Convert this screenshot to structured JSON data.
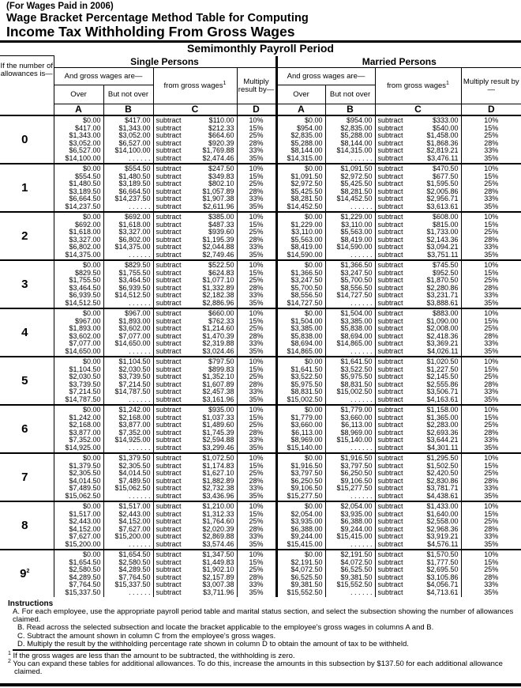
{
  "header": {
    "year_note": "(For Wages Paid in 2006)",
    "title_line1": "Wage Bracket Percentage Method Table for Computing",
    "title_line2": "Income Tax Withholding From Gross Wages",
    "period": "Semimonthly Payroll Period"
  },
  "columns": {
    "allowances": "If the number of allowances is—",
    "single": "Single Persons",
    "married": "Married Persons",
    "wages_are": "And gross wages are—",
    "over": "Over",
    "but_not_over": "But not over",
    "from_gross": "from gross wages",
    "from_gross_note": "1",
    "multiply": "Multiply result by—",
    "letters": [
      "A",
      "B",
      "C",
      "D"
    ],
    "subtract_word": "subtract",
    "open_ended": ". . . . . ."
  },
  "rates": [
    "10%",
    "15%",
    "25%",
    "28%",
    "33%",
    "35%"
  ],
  "groups": [
    {
      "allowances": "0",
      "note": "",
      "single": {
        "a": [
          "$0.00",
          "$417.00",
          "$1,343.00",
          "$3,052.00",
          "$6,527.00",
          "$14,100.00"
        ],
        "b": [
          "$417.00",
          "$1,343.00",
          "$3,052.00",
          "$6,527.00",
          "$14,100.00"
        ],
        "c": [
          "$110.00",
          "$212.33",
          "$664.60",
          "$920.39",
          "$1,769.88",
          "$2,474.46"
        ]
      },
      "married": {
        "a": [
          "$0.00",
          "$954.00",
          "$2,835.00",
          "$5,288.00",
          "$8,144.00",
          "$14,315.00"
        ],
        "b": [
          "$954.00",
          "$2,835.00",
          "$5,288.00",
          "$8,144.00",
          "$14,315.00"
        ],
        "c": [
          "$333.00",
          "$540.00",
          "$1,458.00",
          "$1,868.36",
          "$2,819.21",
          "$3,476.11"
        ]
      }
    },
    {
      "allowances": "1",
      "note": "",
      "single": {
        "a": [
          "$0.00",
          "$554.50",
          "$1,480.50",
          "$3,189.50",
          "$6,664.50",
          "$14,237.50"
        ],
        "b": [
          "$554.50",
          "$1,480.50",
          "$3,189.50",
          "$6,664.50",
          "$14,237.50"
        ],
        "c": [
          "$247.50",
          "$349.83",
          "$802.10",
          "$1,057.89",
          "$1,907.38",
          "$2,611.96"
        ]
      },
      "married": {
        "a": [
          "$0.00",
          "$1,091.50",
          "$2,972.50",
          "$5,425.50",
          "$8,281.50",
          "$14,452.50"
        ],
        "b": [
          "$1,091.50",
          "$2,972.50",
          "$5,425.50",
          "$8,281.50",
          "$14,452.50"
        ],
        "c": [
          "$470.50",
          "$677.50",
          "$1,595.50",
          "$2,005.86",
          "$2,956.71",
          "$3,613.61"
        ]
      }
    },
    {
      "allowances": "2",
      "note": "",
      "single": {
        "a": [
          "$0.00",
          "$692.00",
          "$1,618.00",
          "$3,327.00",
          "$6,802.00",
          "$14,375.00"
        ],
        "b": [
          "$692.00",
          "$1,618.00",
          "$3,327.00",
          "$6,802.00",
          "$14,375.00"
        ],
        "c": [
          "$385.00",
          "$487.33",
          "$939.60",
          "$1,195.39",
          "$2,044.88",
          "$2,749.46"
        ]
      },
      "married": {
        "a": [
          "$0.00",
          "$1,229.00",
          "$3,110.00",
          "$5,563.00",
          "$8,419.00",
          "$14,590.00"
        ],
        "b": [
          "$1,229.00",
          "$3,110.00",
          "$5,563.00",
          "$8,419.00",
          "$14,590.00"
        ],
        "c": [
          "$608.00",
          "$815.00",
          "$1,733.00",
          "$2,143.36",
          "$3,094.21",
          "$3,751.11"
        ]
      }
    },
    {
      "allowances": "3",
      "note": "",
      "single": {
        "a": [
          "$0.00",
          "$829.50",
          "$1,755.50",
          "$3,464.50",
          "$6,939.50",
          "$14,512.50"
        ],
        "b": [
          "$829.50",
          "$1,755.50",
          "$3,464.50",
          "$6,939.50",
          "$14,512.50"
        ],
        "c": [
          "$522.50",
          "$624.83",
          "$1,077.10",
          "$1,332.89",
          "$2,182.38",
          "$2,886.96"
        ]
      },
      "married": {
        "a": [
          "$0.00",
          "$1,366.50",
          "$3,247.50",
          "$5,700.50",
          "$8,556.50",
          "$14,727.50"
        ],
        "b": [
          "$1,366.50",
          "$3,247.50",
          "$5,700.50",
          "$8,556.50",
          "$14,727.50"
        ],
        "c": [
          "$745.50",
          "$952.50",
          "$1,870.50",
          "$2,280.86",
          "$3,231.71",
          "$3,888.61"
        ]
      }
    },
    {
      "allowances": "4",
      "note": "",
      "single": {
        "a": [
          "$0.00",
          "$967.00",
          "$1,893.00",
          "$3,602.00",
          "$7,077.00",
          "$14,650.00"
        ],
        "b": [
          "$967.00",
          "$1,893.00",
          "$3,602.00",
          "$7,077.00",
          "$14,650.00"
        ],
        "c": [
          "$660.00",
          "$762.33",
          "$1,214.60",
          "$1,470.39",
          "$2,319.88",
          "$3,024.46"
        ]
      },
      "married": {
        "a": [
          "$0.00",
          "$1,504.00",
          "$3,385.00",
          "$5,838.00",
          "$8,694.00",
          "$14,865.00"
        ],
        "b": [
          "$1,504.00",
          "$3,385.00",
          "$5,838.00",
          "$8,694.00",
          "$14,865.00"
        ],
        "c": [
          "$883.00",
          "$1,090.00",
          "$2,008.00",
          "$2,418.36",
          "$3,369.21",
          "$4,026.11"
        ]
      }
    },
    {
      "allowances": "5",
      "note": "",
      "single": {
        "a": [
          "$0.00",
          "$1,104.50",
          "$2,030.50",
          "$3,739.50",
          "$7,214.50",
          "$14,787.50"
        ],
        "b": [
          "$1,104.50",
          "$2,030.50",
          "$3,739.50",
          "$7,214.50",
          "$14,787.50"
        ],
        "c": [
          "$797.50",
          "$899.83",
          "$1,352.10",
          "$1,607.89",
          "$2,457.38",
          "$3,161.96"
        ]
      },
      "married": {
        "a": [
          "$0.00",
          "$1,641.50",
          "$3,522.50",
          "$5,975.50",
          "$8,831.50",
          "$15,002.50"
        ],
        "b": [
          "$1,641.50",
          "$3,522.50",
          "$5,975.50",
          "$8,831.50",
          "$15,002.50"
        ],
        "c": [
          "$1,020.50",
          "$1,227.50",
          "$2,145.50",
          "$2,555.86",
          "$3,506.71",
          "$4,163.61"
        ]
      }
    },
    {
      "allowances": "6",
      "note": "",
      "single": {
        "a": [
          "$0.00",
          "$1,242.00",
          "$2,168.00",
          "$3,877.00",
          "$7,352.00",
          "$14,925.00"
        ],
        "b": [
          "$1,242.00",
          "$2,168.00",
          "$3,877.00",
          "$7,352.00",
          "$14,925.00"
        ],
        "c": [
          "$935.00",
          "$1,037.33",
          "$1,489.60",
          "$1,745.39",
          "$2,594.88",
          "$3,299.46"
        ]
      },
      "married": {
        "a": [
          "$0.00",
          "$1,779.00",
          "$3,660.00",
          "$6,113.00",
          "$8,969.00",
          "$15,140.00"
        ],
        "b": [
          "$1,779.00",
          "$3,660.00",
          "$6,113.00",
          "$8,969.00",
          "$15,140.00"
        ],
        "c": [
          "$1,158.00",
          "$1,365.00",
          "$2,283.00",
          "$2,693.36",
          "$3,644.21",
          "$4,301.11"
        ]
      }
    },
    {
      "allowances": "7",
      "note": "",
      "single": {
        "a": [
          "$0.00",
          "$1,379.50",
          "$2,305.50",
          "$4,014.50",
          "$7,489.50",
          "$15,062.50"
        ],
        "b": [
          "$1,379.50",
          "$2,305.50",
          "$4,014.50",
          "$7,489.50",
          "$15,062.50"
        ],
        "c": [
          "$1,072.50",
          "$1,174.83",
          "$1,627.10",
          "$1,882.89",
          "$2,732.38",
          "$3,436.96"
        ]
      },
      "married": {
        "a": [
          "$0.00",
          "$1,916.50",
          "$3,797.50",
          "$6,250.50",
          "$9,106.50",
          "$15,277.50"
        ],
        "b": [
          "$1,916.50",
          "$3,797.50",
          "$6,250.50",
          "$9,106.50",
          "$15,277.50"
        ],
        "c": [
          "$1,295.50",
          "$1,502.50",
          "$2,420.50",
          "$2,830.86",
          "$3,781.71",
          "$4,438.61"
        ]
      }
    },
    {
      "allowances": "8",
      "note": "",
      "single": {
        "a": [
          "$0.00",
          "$1,517.00",
          "$2,443.00",
          "$4,152.00",
          "$7,627.00",
          "$15,200.00"
        ],
        "b": [
          "$1,517.00",
          "$2,443.00",
          "$4,152.00",
          "$7,627.00",
          "$15,200.00"
        ],
        "c": [
          "$1,210.00",
          "$1,312.33",
          "$1,764.60",
          "$2,020.39",
          "$2,869.88",
          "$3,574.46"
        ]
      },
      "married": {
        "a": [
          "$0.00",
          "$2,054.00",
          "$3,935.00",
          "$6,388.00",
          "$9,244.00",
          "$15,415.00"
        ],
        "b": [
          "$2,054.00",
          "$3,935.00",
          "$6,388.00",
          "$9,244.00",
          "$15,415.00"
        ],
        "c": [
          "$1,433.00",
          "$1,640.00",
          "$2,558.00",
          "$2,968.36",
          "$3,919.21",
          "$4,576.11"
        ]
      }
    },
    {
      "allowances": "9",
      "note": "2",
      "single": {
        "a": [
          "$0.00",
          "$1,654.50",
          "$2,580.50",
          "$4,289.50",
          "$7,764.50",
          "$15,337.50"
        ],
        "b": [
          "$1,654.50",
          "$2,580.50",
          "$4,289.50",
          "$7,764.50",
          "$15,337.50"
        ],
        "c": [
          "$1,347.50",
          "$1,449.83",
          "$1,902.10",
          "$2,157.89",
          "$3,007.38",
          "$3,711.96"
        ]
      },
      "married": {
        "a": [
          "$0.00",
          "$2,191.50",
          "$4,072.50",
          "$6,525.50",
          "$9,381.50",
          "$15,552.50"
        ],
        "b": [
          "$2,191.50",
          "$4,072.50",
          "$6,525.50",
          "$9,381.50",
          "$15,552.50"
        ],
        "c": [
          "$1,570.50",
          "$1,777.50",
          "$2,695.50",
          "$3,105.86",
          "$4,056.71",
          "$4,713.61"
        ]
      }
    }
  ],
  "instructions": {
    "heading": "Instructions",
    "steps": [
      "A. For each employee,  use the appropriate payroll period table and marital status section, and select the subsection showing the number of allowances claimed.",
      "B. Read across the selected subsection and locate the bracket applicable to the employee's gross wages in columns A and B.",
      "C. Subtract the amount shown in column C from the employee's gross wages.",
      "D. Multiply the result by the withholding percentage rate shown in column D to obtain the amount of tax to be withheld."
    ],
    "footnotes": [
      {
        "mark": "1",
        "text": "If the gross wages are less than the amount to be subtracted, the withholding is zero."
      },
      {
        "mark": "2",
        "text": "You can expand these tables for additional allowances. To do this, increase the amounts in this subsection by $137.50 for each additional allowance claimed."
      }
    ]
  }
}
